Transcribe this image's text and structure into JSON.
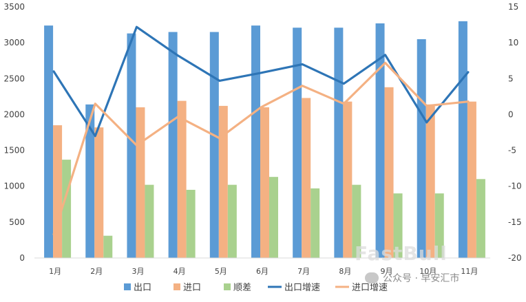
{
  "chart_data": {
    "type": "bar",
    "categories": [
      "1月",
      "2月",
      "3月",
      "4月",
      "5月",
      "6月",
      "7月",
      "8月",
      "9月",
      "10月",
      "11月"
    ],
    "series": [
      {
        "name": "出口",
        "kind": "bar",
        "axis": "left",
        "color": "#5b9bd5",
        "values": [
          3240,
          2140,
          3130,
          3150,
          3150,
          3240,
          3210,
          3210,
          3270,
          3050,
          3300
        ]
      },
      {
        "name": "进口",
        "kind": "bar",
        "axis": "left",
        "color": "#f4b183",
        "values": [
          1850,
          1820,
          2100,
          2190,
          2120,
          2100,
          2230,
          2180,
          2380,
          2140,
          2180
        ]
      },
      {
        "name": "顺差",
        "kind": "bar",
        "axis": "left",
        "color": "#a9d18e",
        "values": [
          1370,
          310,
          1020,
          950,
          1020,
          1130,
          970,
          1020,
          900,
          900,
          1100
        ]
      },
      {
        "name": "出口增速",
        "kind": "line",
        "axis": "right",
        "color": "#2e75b6",
        "values": [
          6.0,
          -3.0,
          12.2,
          8.2,
          4.7,
          5.8,
          7.0,
          4.3,
          8.3,
          -1.1,
          5.9
        ]
      },
      {
        "name": "进口增速",
        "kind": "line",
        "axis": "right",
        "color": "#f4b183",
        "values": [
          -16.7,
          1.5,
          -4.3,
          -0.3,
          -3.3,
          1.0,
          4.0,
          1.5,
          7.2,
          1.2,
          1.8
        ]
      }
    ],
    "y_left": {
      "min": 0,
      "max": 3500,
      "ticks": [
        "0",
        "500",
        "1000",
        "1500",
        "2000",
        "2500",
        "3000",
        "3500"
      ]
    },
    "y_right": {
      "min": -20,
      "max": 15,
      "ticks": [
        "-20",
        "-15",
        "-10",
        "-5",
        "0",
        "5",
        "10",
        "15"
      ]
    },
    "grid": false,
    "legend": "bottom"
  },
  "watermark": {
    "text": "公众号 · 早安汇市",
    "ghost_text": "FastBull"
  }
}
